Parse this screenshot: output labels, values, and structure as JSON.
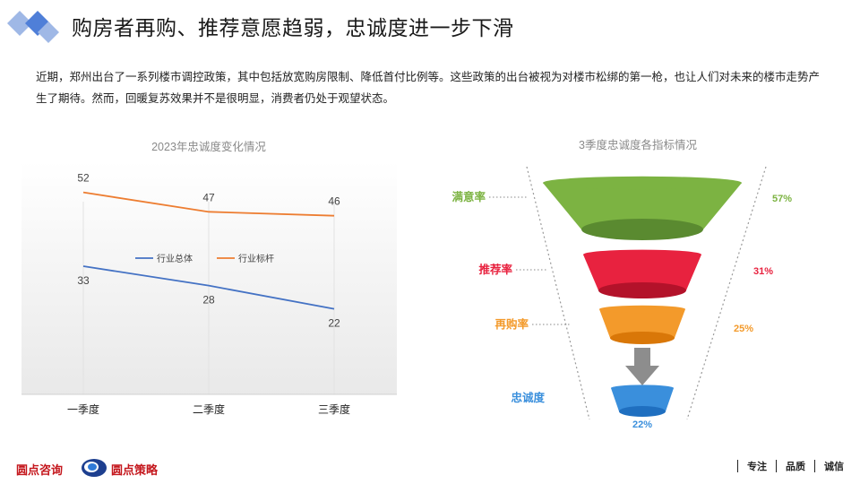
{
  "header": {
    "title": "购房者再购、推荐意愿趋弱，忠诚度进一步下滑"
  },
  "intro": {
    "text": "近期，郑州出台了一系列楼市调控政策，其中包括放宽购房限制、降低首付比例等。这些政策的出台被视为对楼市松绑的第一枪，也让人们对未来的楼市走势产生了期待。然而，回暖复苏效果并不是很明显，消费者仍处于观望状态。"
  },
  "footer": {
    "brand_left": "圆点咨询",
    "brand_right": "圆点策略",
    "slogans": [
      "专注",
      "品质",
      "诚信"
    ]
  },
  "colors": {
    "series_industry": "#4472c4",
    "series_benchmark": "#ed7d31",
    "satisfaction": "#7cb342",
    "recommend": "#e8223f",
    "repurchase": "#f39a2b",
    "loyalty": "#3a8fdc"
  },
  "chart_data": [
    {
      "type": "line",
      "title": "2023年忠诚度变化情况",
      "categories": [
        "一季度",
        "二季度",
        "三季度"
      ],
      "series": [
        {
          "name": "行业总体",
          "values": [
            33,
            28,
            22
          ]
        },
        {
          "name": "行业标杆",
          "values": [
            52,
            47,
            46
          ]
        }
      ],
      "ylim": [
        0,
        60
      ],
      "grid": false,
      "legend": "center",
      "xlabel": "",
      "ylabel": ""
    },
    {
      "type": "funnel",
      "title": "3季度忠诚度各指标情况",
      "categories": [
        "满意率",
        "推荐率",
        "再购率",
        "忠诚度"
      ],
      "values": [
        57,
        31,
        25,
        22
      ],
      "labels": [
        "57%",
        "31%",
        "25%",
        "22%"
      ]
    }
  ]
}
